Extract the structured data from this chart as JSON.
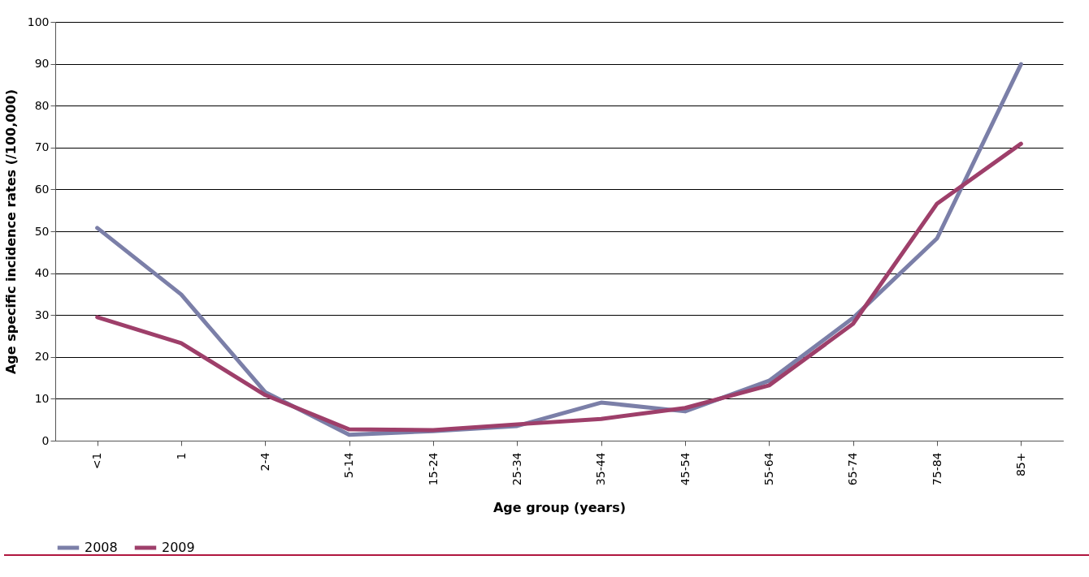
{
  "chart_data": {
    "type": "line",
    "xlabel": "Age group (years)",
    "ylabel": "Age specific incidence rates (/100,000)",
    "categories": [
      "<1",
      "1",
      "2-4",
      "5-14",
      "15-24",
      "25-34",
      "35-44",
      "45-54",
      "55-64",
      "65-74",
      "75-84",
      "85+"
    ],
    "series": [
      {
        "name": "2008",
        "color": "#7b7fa8",
        "values": [
          50.8,
          34.9,
          11.6,
          1.4,
          2.3,
          3.5,
          9.1,
          7,
          14.3,
          29.3,
          48.3,
          89.9
        ]
      },
      {
        "name": "2009",
        "color": "#9e3f6a",
        "values": [
          29.5,
          23.3,
          10.9,
          2.7,
          2.5,
          3.9,
          5.2,
          7.8,
          13.2,
          27.9,
          56.6,
          70.9
        ]
      }
    ],
    "ylim": [
      0,
      100
    ],
    "yticks": [
      0,
      10,
      20,
      30,
      40,
      50,
      60,
      70,
      80,
      90,
      100
    ],
    "grid": "y",
    "legend": "bottom",
    "marker": "none",
    "line_style": "solid"
  }
}
